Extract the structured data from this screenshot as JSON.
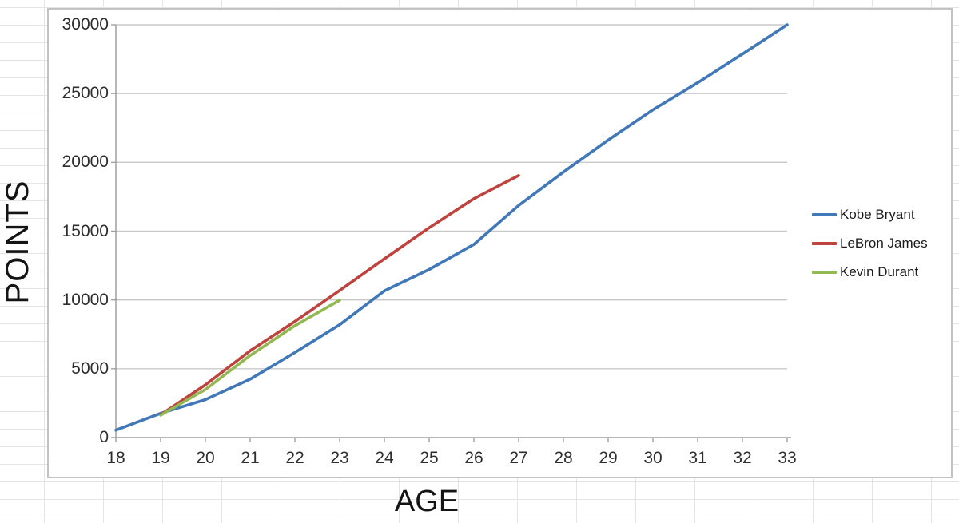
{
  "chart_data": {
    "type": "line",
    "title": "",
    "xlabel": "AGE",
    "ylabel": "POINTS",
    "xlim": [
      18,
      33
    ],
    "ylim": [
      0,
      30000
    ],
    "x_ticks": [
      18,
      19,
      20,
      21,
      22,
      23,
      24,
      25,
      26,
      27,
      28,
      29,
      30,
      31,
      32,
      33
    ],
    "y_ticks": [
      0,
      5000,
      10000,
      15000,
      20000,
      25000,
      30000
    ],
    "grid": "horizontal-only",
    "legend_position": "right-middle",
    "series": [
      {
        "name": "Kobe Bryant",
        "color": "#4078b8",
        "x": [
          18,
          19,
          20,
          21,
          22,
          23,
          24,
          25,
          26,
          27,
          28,
          29,
          30,
          31,
          32,
          33
        ],
        "values": [
          539,
          1759,
          2755,
          4240,
          6178,
          8197,
          10658,
          12215,
          14034,
          16866,
          19296,
          21619,
          23820,
          25790,
          27868,
          30000
        ]
      },
      {
        "name": "LeBron James",
        "color": "#be423d",
        "x": [
          19,
          20,
          21,
          22,
          23,
          24,
          25,
          26,
          27
        ],
        "values": [
          1654,
          3829,
          6307,
          8439,
          10689,
          12993,
          15251,
          17362,
          19045
        ]
      },
      {
        "name": "Kevin Durant",
        "color": "#92b951",
        "x": [
          19,
          20,
          21,
          22,
          23
        ],
        "values": [
          1624,
          3495,
          5967,
          8128,
          9978
        ]
      }
    ],
    "style_colors": {
      "gridline": "#c9c9c9",
      "axis": "#9f9f9f",
      "chart_border": "#c3c3c3",
      "cell_grid": "#e4e4e4",
      "tick_text": "#2d2d2d"
    }
  }
}
